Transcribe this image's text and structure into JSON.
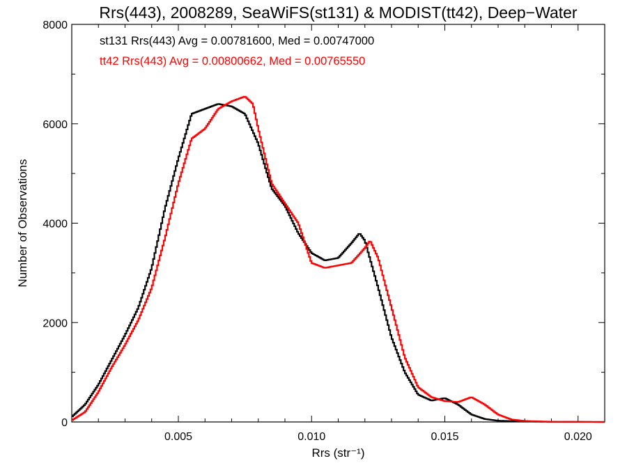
{
  "chart_data": {
    "type": "line",
    "title": "Rrs(443), 2008289, SeaWiFS(st131) & MODIST(tt42), Deep−Water",
    "xlabel": "Rrs (str⁻¹)",
    "ylabel": "Number of Observations",
    "xlim": [
      0.001,
      0.021
    ],
    "ylim": [
      0,
      8000
    ],
    "x_ticks": [
      0.005,
      0.01,
      0.015,
      0.02
    ],
    "x_tick_labels": [
      "0.005",
      "0.010",
      "0.015",
      "0.020"
    ],
    "y_ticks": [
      0,
      2000,
      4000,
      6000,
      8000
    ],
    "y_tick_labels": [
      "0",
      "2000",
      "4000",
      "6000",
      "8000"
    ],
    "grid": false,
    "style": "step",
    "annotations": [
      {
        "text": "st131 Rrs(443) Avg = 0.00781600, Med = 0.00747000",
        "color": "#000000"
      },
      {
        "text": "tt42 Rrs(443) Avg = 0.00800662, Med = 0.00765550",
        "color": "#ff0000"
      }
    ],
    "series": [
      {
        "name": "st131",
        "color": "#000000",
        "x": [
          0.001,
          0.0015,
          0.002,
          0.0025,
          0.003,
          0.0035,
          0.004,
          0.0045,
          0.005,
          0.0055,
          0.006,
          0.0065,
          0.007,
          0.0075,
          0.008,
          0.0085,
          0.009,
          0.0095,
          0.01,
          0.0105,
          0.011,
          0.0115,
          0.0118,
          0.012,
          0.0125,
          0.013,
          0.0135,
          0.014,
          0.0145,
          0.015,
          0.0155,
          0.016,
          0.0165,
          0.017,
          0.018,
          0.019,
          0.021
        ],
        "y": [
          100,
          350,
          750,
          1250,
          1750,
          2300,
          3100,
          4300,
          5300,
          6200,
          6300,
          6400,
          6350,
          6200,
          5600,
          4700,
          4350,
          3800,
          3400,
          3250,
          3300,
          3600,
          3800,
          3650,
          2700,
          1700,
          1000,
          550,
          430,
          480,
          350,
          150,
          60,
          25,
          10,
          3,
          0
        ]
      },
      {
        "name": "tt42",
        "color": "#ff0000",
        "x": [
          0.001,
          0.0015,
          0.002,
          0.0025,
          0.003,
          0.0035,
          0.004,
          0.0045,
          0.005,
          0.0055,
          0.006,
          0.0065,
          0.007,
          0.0075,
          0.0078,
          0.008,
          0.0085,
          0.009,
          0.0095,
          0.01,
          0.0105,
          0.011,
          0.0115,
          0.012,
          0.0122,
          0.0125,
          0.013,
          0.0135,
          0.014,
          0.0145,
          0.015,
          0.0155,
          0.016,
          0.0165,
          0.017,
          0.0175,
          0.018,
          0.019,
          0.021
        ],
        "y": [
          30,
          200,
          600,
          1100,
          1550,
          2050,
          2700,
          3700,
          4800,
          5700,
          5900,
          6300,
          6450,
          6550,
          6400,
          5900,
          4800,
          4400,
          4000,
          3200,
          3100,
          3150,
          3200,
          3500,
          3650,
          3300,
          2300,
          1300,
          700,
          500,
          420,
          400,
          500,
          350,
          150,
          50,
          20,
          5,
          0
        ]
      }
    ]
  }
}
